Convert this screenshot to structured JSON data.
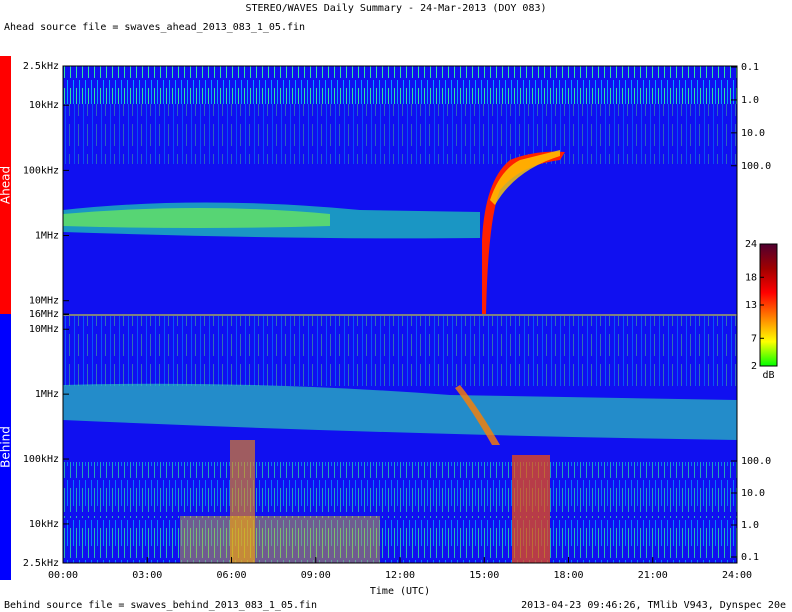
{
  "header": {
    "title": "STEREO/WAVES Daily Summary - 24-Mar-2013 (DOY 083)",
    "ahead_file": "Ahead source file = swaves_ahead_2013_083_1_05.fin",
    "behind_file": "Behind source file = swaves_behind_2013_083_1_05.fin",
    "footer": "2013-04-23 09:46:26, TMlib V943, Dynspec 20e"
  },
  "chart_data": [
    {
      "type": "heatmap",
      "label": "Ahead",
      "label_color": "#ff0000",
      "log": true,
      "xlim": [
        0,
        24
      ],
      "ylim": [
        16000000,
        2500
      ],
      "yticks": [
        {
          "value": 2500,
          "label": "2.5kHz"
        },
        {
          "value": 10000,
          "label": "10kHz"
        },
        {
          "value": 100000,
          "label": "100kHz"
        },
        {
          "value": 1000000,
          "label": "1MHz"
        },
        {
          "value": 10000000,
          "label": "10MHz"
        },
        {
          "value": 16000000,
          "label": "16MHz"
        }
      ],
      "y2lim": [
        3200000,
        0.093
      ],
      "y2ticks": [
        0.1,
        {
          "value": 1,
          "label": "1.0"
        },
        {
          "value": 10,
          "label": "10.0"
        },
        {
          "value": 100,
          "label": "100.0"
        }
      ]
    },
    {
      "type": "heatmap",
      "label": "Behind",
      "label_color": "#0000ff",
      "log": true,
      "xlabel": "Time (UTC)",
      "xlim": [
        0,
        24
      ],
      "xticks": [
        {
          "value": 0,
          "label": "00:00"
        },
        {
          "value": 3,
          "label": "03:00"
        },
        {
          "value": 6,
          "label": "06:00"
        },
        {
          "value": 9,
          "label": "09:00"
        },
        {
          "value": 12,
          "label": "12:00"
        },
        {
          "value": 15,
          "label": "15:00"
        },
        {
          "value": 18,
          "label": "18:00"
        },
        {
          "value": 21,
          "label": "21:00"
        },
        {
          "value": 24,
          "label": "24:00"
        }
      ],
      "ylim": [
        2500,
        16000000
      ],
      "yticks": [
        {
          "value": 10000000,
          "label": "10MHz"
        },
        {
          "value": 1000000,
          "label": "1MHz"
        },
        {
          "value": 100000,
          "label": "100kHz"
        },
        {
          "value": 10000,
          "label": "10kHz"
        },
        {
          "value": 2500,
          "label": "2.5kHz"
        }
      ],
      "y2lim": [
        0.065,
        3400000
      ],
      "y2ticks": [
        {
          "value": 100,
          "label": "100.0"
        },
        {
          "value": 10,
          "label": "10.0"
        },
        {
          "value": 1,
          "label": "1.0"
        },
        0.1
      ]
    }
  ],
  "colorbar": {
    "label": "dB",
    "zlim": [
      2,
      24
    ],
    "ticks": [
      2,
      7,
      13,
      18,
      24
    ],
    "colors": [
      "#00ff00",
      "#ffff00",
      "#ff8000",
      "#ff0000",
      "#a00000",
      "#500030"
    ]
  }
}
